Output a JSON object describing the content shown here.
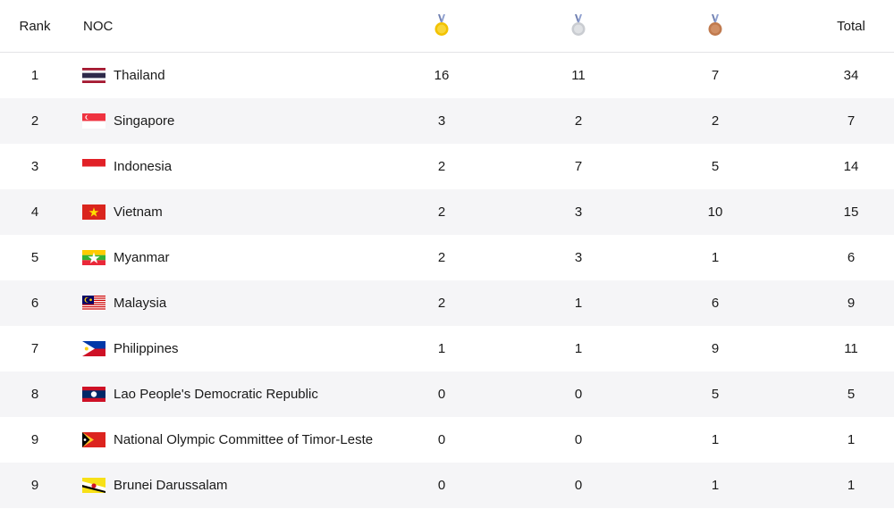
{
  "header": {
    "rank": "Rank",
    "noc": "NOC",
    "gold_icon": "gold-medal-icon",
    "silver_icon": "silver-medal-icon",
    "bronze_icon": "bronze-medal-icon",
    "total": "Total"
  },
  "colors": {
    "gold": "#f2c200",
    "silver": "#c9ccd1",
    "bronze": "#c07a4e",
    "row_alt": "#f5f5f7"
  },
  "rows": [
    {
      "rank": "1",
      "noc": "Thailand",
      "flag": "thailand-flag-icon",
      "gold": "16",
      "silver": "11",
      "bronze": "7",
      "total": "34"
    },
    {
      "rank": "2",
      "noc": "Singapore",
      "flag": "singapore-flag-icon",
      "gold": "3",
      "silver": "2",
      "bronze": "2",
      "total": "7"
    },
    {
      "rank": "3",
      "noc": "Indonesia",
      "flag": "indonesia-flag-icon",
      "gold": "2",
      "silver": "7",
      "bronze": "5",
      "total": "14"
    },
    {
      "rank": "4",
      "noc": "Vietnam",
      "flag": "vietnam-flag-icon",
      "gold": "2",
      "silver": "3",
      "bronze": "10",
      "total": "15"
    },
    {
      "rank": "5",
      "noc": "Myanmar",
      "flag": "myanmar-flag-icon",
      "gold": "2",
      "silver": "3",
      "bronze": "1",
      "total": "6"
    },
    {
      "rank": "6",
      "noc": "Malaysia",
      "flag": "malaysia-flag-icon",
      "gold": "2",
      "silver": "1",
      "bronze": "6",
      "total": "9"
    },
    {
      "rank": "7",
      "noc": "Philippines",
      "flag": "philippines-flag-icon",
      "gold": "1",
      "silver": "1",
      "bronze": "9",
      "total": "11"
    },
    {
      "rank": "8",
      "noc": "Lao People's Democratic Republic",
      "flag": "laos-flag-icon",
      "gold": "0",
      "silver": "0",
      "bronze": "5",
      "total": "5"
    },
    {
      "rank": "9",
      "noc": "National Olympic Committee of Timor-Leste",
      "flag": "timor-leste-flag-icon",
      "gold": "0",
      "silver": "0",
      "bronze": "1",
      "total": "1"
    },
    {
      "rank": "9",
      "noc": "Brunei Darussalam",
      "flag": "brunei-flag-icon",
      "gold": "0",
      "silver": "0",
      "bronze": "1",
      "total": "1"
    }
  ]
}
